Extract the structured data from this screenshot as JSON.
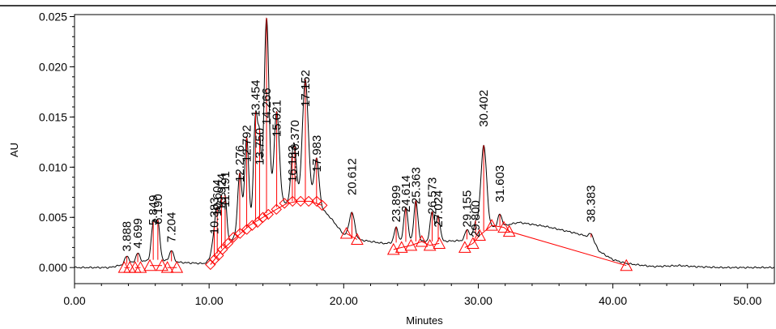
{
  "chart_data": {
    "type": "line",
    "title": "",
    "xlabel": "Minutes",
    "ylabel": "AU",
    "xlim": [
      0,
      52
    ],
    "ylim": [
      -0.0016,
      0.0252
    ],
    "xticks": [
      0,
      10,
      20,
      30,
      40,
      50
    ],
    "xtick_labels": [
      "0.00",
      "10.00",
      "20.00",
      "30.00",
      "40.00",
      "50.00"
    ],
    "yticks": [
      0,
      0.005,
      0.01,
      0.015,
      0.02,
      0.025
    ],
    "ytick_labels": [
      "0.000",
      "0.005",
      "0.010",
      "0.015",
      "0.020",
      "0.025"
    ],
    "grid": false,
    "colors": {
      "trace": "#000000",
      "integration": "#ff0000"
    },
    "peaks": [
      {
        "rt": 3.888,
        "label": "3.888",
        "height": 0.0008,
        "width": 0.15,
        "label_y": 0.0016
      },
      {
        "rt": 4.699,
        "label": "4.699",
        "height": 0.0009,
        "width": 0.15,
        "label_y": 0.0019
      },
      {
        "rt": 5.849,
        "label": "5.849",
        "height": 0.0035,
        "width": 0.15,
        "label_y": 0.0042
      },
      {
        "rt": 6.19,
        "label": "6.190",
        "height": 0.0037,
        "width": 0.15,
        "label_y": 0.0043
      },
      {
        "rt": 7.204,
        "label": "7.204",
        "height": 0.0011,
        "width": 0.15,
        "label_y": 0.0025
      },
      {
        "rt": 10.383,
        "label": "10.383",
        "height": 0.0022,
        "width": 0.18,
        "label_y": 0.0033
      },
      {
        "rt": 10.604,
        "label": "10.604",
        "height": 0.0034,
        "width": 0.13,
        "label_y": 0.0051
      },
      {
        "rt": 10.924,
        "label": "10.924",
        "height": 0.0045,
        "width": 0.13,
        "label_y": 0.0057
      },
      {
        "rt": 11.191,
        "label": "11.191",
        "height": 0.0045,
        "width": 0.13,
        "label_y": 0.006
      },
      {
        "rt": 12.276,
        "label": "12.276",
        "height": 0.006,
        "width": 0.15,
        "label_y": 0.0085
      },
      {
        "rt": 12.792,
        "label": "12.792",
        "height": 0.009,
        "width": 0.15,
        "label_y": 0.0105
      },
      {
        "rt": 13.454,
        "label": "13.454",
        "height": 0.0105,
        "width": 0.15,
        "label_y": 0.015
      },
      {
        "rt": 13.75,
        "label": "13.750",
        "height": 0.007,
        "width": 0.12,
        "label_y": 0.0102
      },
      {
        "rt": 14.266,
        "label": "14.266",
        "height": 0.0195,
        "width": 0.18,
        "label_y": 0.0142
      },
      {
        "rt": 15.021,
        "label": "15.021",
        "height": 0.0095,
        "width": 0.2,
        "label_y": 0.013
      },
      {
        "rt": 16.183,
        "label": "16.183",
        "height": 0.003,
        "width": 0.15,
        "label_y": 0.0085
      },
      {
        "rt": 16.37,
        "label": "16.370",
        "height": 0.004,
        "width": 0.15,
        "label_y": 0.011
      },
      {
        "rt": 17.152,
        "label": "17.152",
        "height": 0.012,
        "width": 0.22,
        "label_y": 0.016
      },
      {
        "rt": 17.983,
        "label": "17.983",
        "height": 0.0045,
        "width": 0.18,
        "label_y": 0.0095
      },
      {
        "rt": 20.612,
        "label": "20.612",
        "height": 0.0025,
        "width": 0.2,
        "label_y": 0.0072
      },
      {
        "rt": 23.899,
        "label": "23.899",
        "height": 0.0015,
        "width": 0.15,
        "label_y": 0.0045
      },
      {
        "rt": 24.614,
        "label": "24.614",
        "height": 0.0035,
        "width": 0.15,
        "label_y": 0.0055
      },
      {
        "rt": 25.363,
        "label": "25.363",
        "height": 0.004,
        "width": 0.15,
        "label_y": 0.0063
      },
      {
        "rt": 26.573,
        "label": "26.573",
        "height": 0.003,
        "width": 0.15,
        "label_y": 0.0053
      },
      {
        "rt": 27.024,
        "label": "27.024",
        "height": 0.0025,
        "width": 0.15,
        "label_y": 0.004
      },
      {
        "rt": 29.155,
        "label": "29.155",
        "height": 0.001,
        "width": 0.15,
        "label_y": 0.004
      },
      {
        "rt": 29.8,
        "label": "29.800",
        "height": 0.0012,
        "width": 0.15,
        "label_y": 0.003
      },
      {
        "rt": 30.402,
        "label": "30.402",
        "height": 0.0085,
        "width": 0.22,
        "label_y": 0.014
      },
      {
        "rt": 31.603,
        "label": "31.603",
        "height": 0.0012,
        "width": 0.15,
        "label_y": 0.0065
      },
      {
        "rt": 38.383,
        "label": "38.383",
        "height": 0.0004,
        "width": 0.15,
        "label_y": 0.0045
      }
    ],
    "baseline_hump": [
      [
        0,
        0
      ],
      [
        2.6,
        0
      ],
      [
        4,
        0.0004
      ],
      [
        6,
        0.0008
      ],
      [
        8,
        0.0005
      ],
      [
        9.6,
        0.0004
      ],
      [
        10.2,
        0.0008
      ],
      [
        11,
        0.002
      ],
      [
        12,
        0.0032
      ],
      [
        13,
        0.0042
      ],
      [
        14,
        0.0052
      ],
      [
        15,
        0.006
      ],
      [
        16,
        0.0066
      ],
      [
        17,
        0.0067
      ],
      [
        18,
        0.0064
      ],
      [
        19,
        0.005
      ],
      [
        20,
        0.0033
      ],
      [
        21,
        0.0028
      ],
      [
        23,
        0.0024
      ],
      [
        25,
        0.0026
      ],
      [
        27,
        0.0026
      ],
      [
        29,
        0.0027
      ],
      [
        30,
        0.0034
      ],
      [
        31,
        0.004
      ],
      [
        32,
        0.0042
      ],
      [
        33,
        0.0045
      ],
      [
        35,
        0.0041
      ],
      [
        37,
        0.0035
      ],
      [
        38.4,
        0.003
      ],
      [
        39,
        0.0016
      ],
      [
        40,
        0.0008
      ],
      [
        41,
        0.0004
      ],
      [
        43,
        0.0001
      ],
      [
        45,
        0.0002
      ],
      [
        46,
        0.0001
      ],
      [
        48,
        0
      ],
      [
        52,
        0
      ]
    ],
    "integration_segments": [
      [
        [
          3.7,
          0
        ],
        [
          4.1,
          0
        ]
      ],
      [
        [
          4.5,
          0
        ],
        [
          4.9,
          0
        ]
      ],
      [
        [
          5.6,
          0.0002
        ],
        [
          6.5,
          0.0002
        ]
      ],
      [
        [
          6.9,
          0
        ],
        [
          7.6,
          0
        ]
      ],
      [
        [
          10.1,
          0.0003
        ],
        [
          11.0,
          0.0018
        ],
        [
          12.0,
          0.003
        ],
        [
          13.0,
          0.0042
        ],
        [
          14.0,
          0.005
        ],
        [
          15.0,
          0.0058
        ],
        [
          15.8,
          0.0064
        ],
        [
          16.6,
          0.0066
        ],
        [
          17.5,
          0.0066
        ],
        [
          18.4,
          0.0062
        ]
      ],
      [
        [
          20.2,
          0.0034
        ],
        [
          21.0,
          0.0028
        ]
      ],
      [
        [
          23.7,
          0.0018
        ],
        [
          24.3,
          0.002
        ],
        [
          25.0,
          0.0022
        ],
        [
          25.8,
          0.0026
        ],
        [
          26.4,
          0.0022
        ],
        [
          27.1,
          0.0024
        ]
      ],
      [
        [
          29.0,
          0.002
        ],
        [
          29.6,
          0.0024
        ],
        [
          30.1,
          0.0032
        ],
        [
          31.0,
          0.0042
        ],
        [
          31.9,
          0.004
        ],
        [
          32.3,
          0.0036
        ]
      ],
      [
        [
          32.3,
          0.0036
        ],
        [
          41.0,
          0.0002
        ]
      ]
    ],
    "baseline_markers": [
      [
        3.7,
        0
      ],
      [
        4.1,
        0
      ],
      [
        4.5,
        0
      ],
      [
        4.9,
        0
      ],
      [
        5.6,
        0.0002
      ],
      [
        6.5,
        0.0002
      ],
      [
        6.9,
        0
      ],
      [
        7.6,
        0
      ],
      [
        20.2,
        0.0034
      ],
      [
        21.0,
        0.0028
      ],
      [
        23.7,
        0.0018
      ],
      [
        24.3,
        0.002
      ],
      [
        25.0,
        0.0022
      ],
      [
        25.8,
        0.0026
      ],
      [
        26.4,
        0.0022
      ],
      [
        27.1,
        0.0024
      ],
      [
        29.0,
        0.002
      ],
      [
        29.6,
        0.0024
      ],
      [
        30.1,
        0.0032
      ],
      [
        31.0,
        0.0042
      ],
      [
        31.9,
        0.004
      ],
      [
        32.3,
        0.0036
      ],
      [
        41.0,
        0.0002
      ]
    ],
    "diamond_markers": [
      [
        10.1,
        0.0003
      ],
      [
        10.4,
        0.0008
      ],
      [
        10.7,
        0.0012
      ],
      [
        11.0,
        0.0018
      ],
      [
        11.4,
        0.0024
      ],
      [
        11.8,
        0.003
      ],
      [
        12.3,
        0.0034
      ],
      [
        12.8,
        0.0038
      ],
      [
        13.2,
        0.0042
      ],
      [
        13.6,
        0.0045
      ],
      [
        14.0,
        0.005
      ],
      [
        14.4,
        0.0053
      ],
      [
        15.0,
        0.0058
      ],
      [
        15.6,
        0.0064
      ],
      [
        16.2,
        0.0066
      ],
      [
        16.8,
        0.0066
      ],
      [
        17.4,
        0.0066
      ],
      [
        18.0,
        0.0066
      ],
      [
        18.4,
        0.0062
      ]
    ]
  }
}
